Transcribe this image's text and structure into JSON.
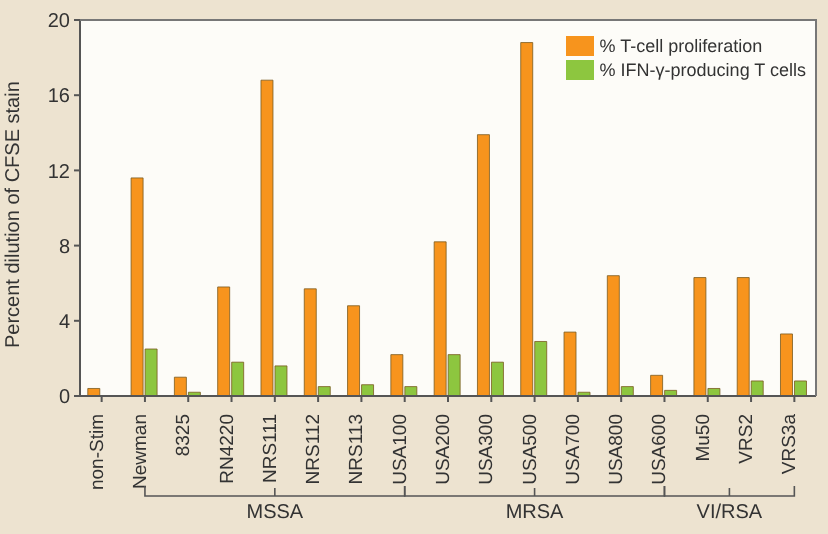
{
  "chart_data": {
    "type": "bar",
    "ylabel": "Percent dilution of CFSE stain",
    "categories": [
      "non-Stim",
      "Newman",
      "8325",
      "RN4220",
      "NRS111",
      "NRS112",
      "NRS113",
      "USA100",
      "USA200",
      "USA300",
      "USA500",
      "USA700",
      "USA800",
      "USA600",
      "Mu50",
      "VRS2",
      "VRS3a"
    ],
    "series": [
      {
        "name": "% T-cell proliferation",
        "color": "#f7941d",
        "values": [
          0.4,
          11.6,
          1.0,
          5.8,
          16.8,
          5.7,
          4.8,
          2.2,
          8.2,
          13.9,
          18.8,
          3.4,
          6.4,
          1.1,
          6.3,
          6.3,
          3.3
        ]
      },
      {
        "name": "% IFN-γ-producing T cells",
        "color": "#8dc63f",
        "values": [
          null,
          2.5,
          0.2,
          1.8,
          1.6,
          0.5,
          0.6,
          0.5,
          2.2,
          1.8,
          2.9,
          0.2,
          0.5,
          0.3,
          0.4,
          0.8,
          0.8
        ]
      }
    ],
    "ylim": [
      0,
      20
    ],
    "yticks": [
      0,
      4,
      8,
      12,
      16,
      20
    ],
    "grid": false,
    "legend": "top right",
    "annotations": [
      "MSSA",
      "MRSA",
      "VI/RSA"
    ]
  }
}
